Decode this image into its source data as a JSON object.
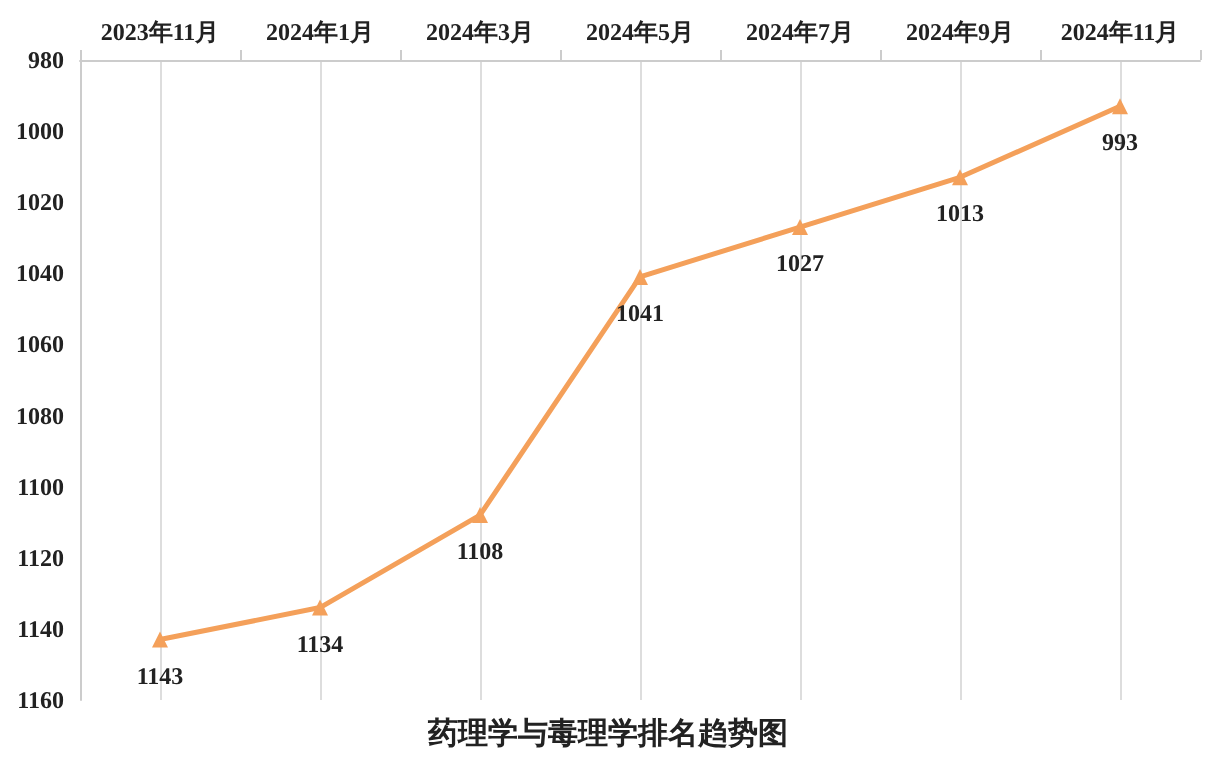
{
  "chart_data": {
    "type": "line",
    "title": "药理学与毒理学排名趋势图",
    "categories": [
      "2023年11月",
      "2024年1月",
      "2024年3月",
      "2024年5月",
      "2024年7月",
      "2024年9月",
      "2024年11月"
    ],
    "values": [
      1143,
      1134,
      1108,
      1041,
      1027,
      1013,
      993
    ],
    "color": "#f4a05a",
    "ylim": [
      1160,
      980
    ],
    "yticks": [
      980,
      1000,
      1020,
      1040,
      1060,
      1080,
      1100,
      1120,
      1140,
      1160
    ],
    "grid": "x",
    "marker": "triangle",
    "line_style": "solid",
    "data_labels": true
  }
}
